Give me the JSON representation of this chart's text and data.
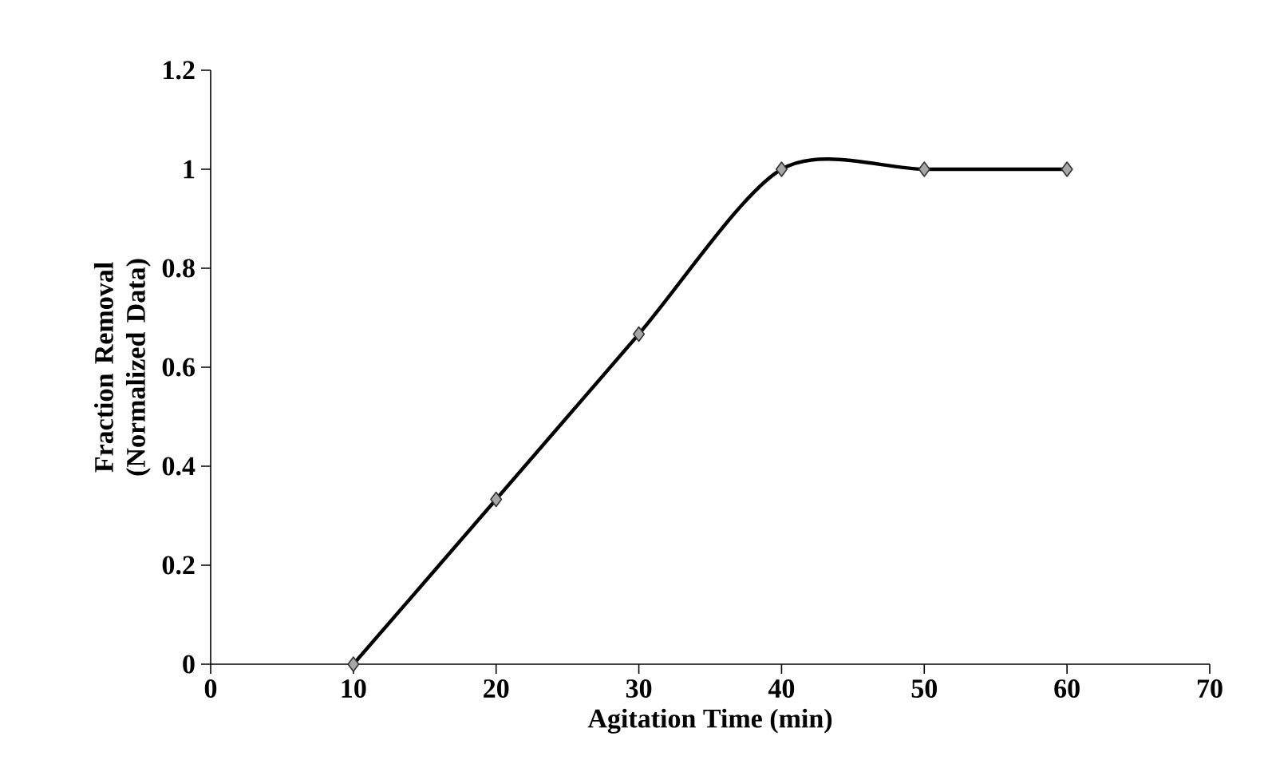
{
  "chart_data": {
    "type": "line",
    "xlabel": "Agitation Time (min)",
    "ylabel": "Fraction Removal (Normalized Data)",
    "x": [
      10,
      20,
      30,
      40,
      50,
      60
    ],
    "series": [
      {
        "color": "#000000",
        "values": [
          0,
          0.333,
          0.667,
          1,
          1,
          1
        ]
      }
    ],
    "xlim": [
      0,
      70
    ],
    "xticks": [
      0,
      10,
      20,
      30,
      40,
      50,
      60,
      70
    ],
    "ylim": [
      0,
      1.2
    ],
    "yticks": [
      0,
      0.2,
      0.4,
      0.6,
      0.8,
      1,
      1.2
    ],
    "grid": false,
    "marker": "diamond",
    "line_style": "solid"
  }
}
